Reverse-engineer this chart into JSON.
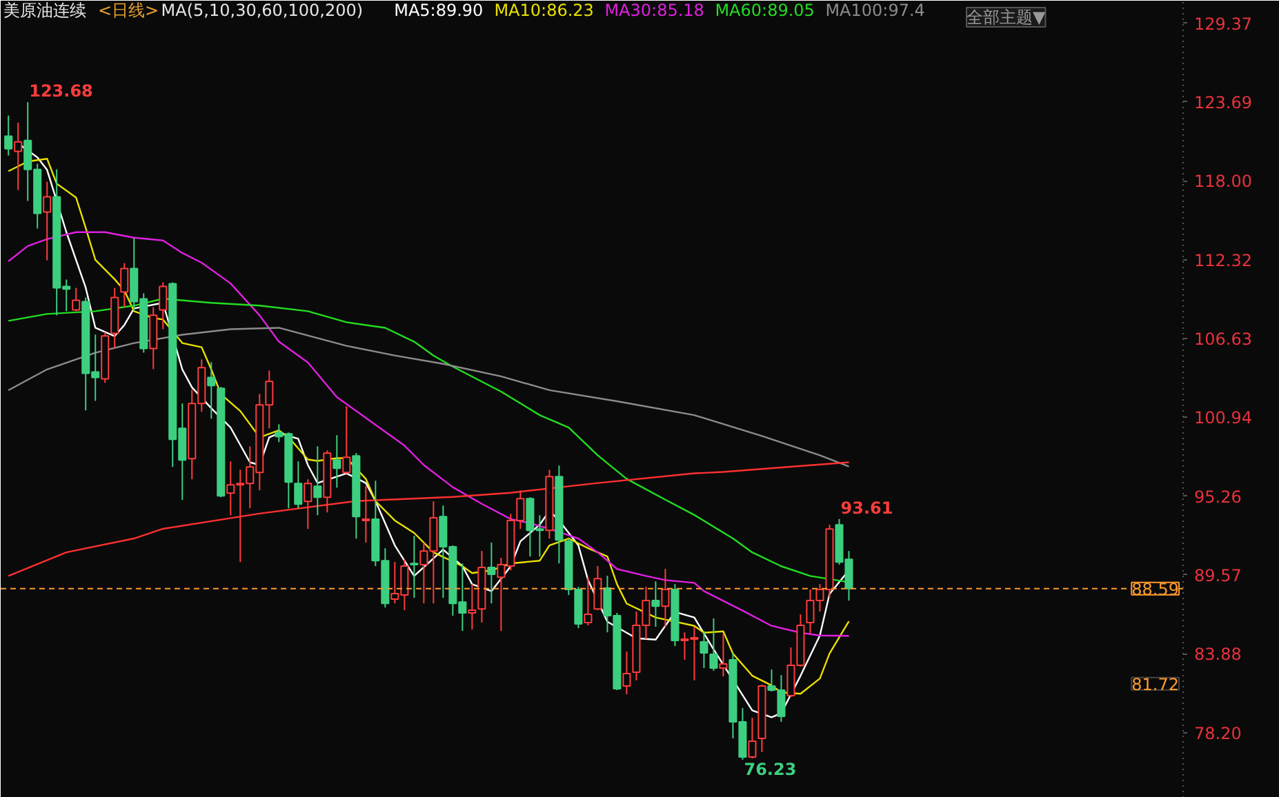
{
  "chart_data": {
    "type": "candlestick",
    "title": "美原油连续",
    "subtitle": "<日线>",
    "legend_title": "MA(5,10,30,60,100,200)",
    "legend": "top",
    "categories": [
      null,
      null,
      null,
      null,
      null,
      null,
      null,
      null,
      null,
      null,
      null,
      null,
      null,
      null,
      null,
      null,
      null,
      null,
      null,
      null,
      null,
      null,
      null,
      null,
      null,
      null,
      null,
      null,
      null,
      null,
      null,
      null,
      null,
      null,
      null,
      null,
      null,
      null,
      null,
      null,
      null,
      null,
      null,
      null,
      null,
      null,
      null,
      null,
      null,
      null,
      null,
      null,
      null,
      null,
      null,
      null,
      null,
      null,
      null,
      null,
      null,
      null,
      null,
      null,
      null,
      null,
      null,
      null,
      null,
      null,
      null,
      null,
      null,
      null,
      null,
      null,
      null,
      null,
      null,
      null,
      null,
      null,
      null,
      null,
      null,
      null,
      null,
      null
    ],
    "ohlc": [
      [
        121.22,
        122.71,
        119.83,
        120.32
      ],
      [
        120.13,
        122.21,
        117.34,
        120.82
      ],
      [
        120.92,
        123.68,
        116.55,
        118.83
      ],
      [
        118.83,
        119.23,
        114.56,
        115.65
      ],
      [
        115.75,
        117.94,
        112.27,
        116.85
      ],
      [
        116.85,
        118.83,
        108.3,
        110.28
      ],
      [
        110.38,
        110.88,
        108.6,
        110.19
      ],
      [
        108.69,
        110.28,
        108.6,
        109.39
      ],
      [
        109.29,
        109.59,
        101.44,
        104.12
      ],
      [
        104.22,
        106.91,
        102.13,
        103.82
      ],
      [
        103.72,
        107.1,
        103.43,
        106.81
      ],
      [
        107.0,
        110.28,
        105.91,
        109.59
      ],
      [
        109.99,
        112.07,
        108.89,
        111.68
      ],
      [
        111.68,
        113.86,
        108.6,
        109.29
      ],
      [
        109.49,
        109.89,
        105.61,
        105.91
      ],
      [
        105.91,
        108.89,
        104.42,
        108.3
      ],
      [
        108.69,
        110.68,
        107.3,
        110.38
      ],
      [
        110.58,
        110.68,
        97.36,
        99.35
      ],
      [
        100.15,
        101.94,
        94.98,
        97.86
      ],
      [
        97.96,
        102.93,
        96.47,
        101.94
      ],
      [
        101.94,
        105.12,
        101.34,
        104.52
      ],
      [
        103.82,
        104.92,
        100.84,
        103.23
      ],
      [
        103.03,
        103.13,
        95.18,
        95.28
      ],
      [
        95.47,
        97.76,
        93.88,
        96.07
      ],
      [
        96.07,
        97.16,
        90.5,
        96.17
      ],
      [
        96.17,
        98.85,
        94.38,
        97.36
      ],
      [
        96.97,
        102.63,
        95.67,
        101.84
      ],
      [
        101.84,
        104.32,
        100.15,
        103.53
      ],
      [
        99.85,
        100.44,
        99.15,
        99.55
      ],
      [
        99.75,
        99.85,
        94.38,
        96.27
      ],
      [
        96.17,
        97.76,
        94.38,
        94.68
      ],
      [
        94.88,
        96.47,
        92.89,
        96.17
      ],
      [
        95.97,
        98.85,
        93.88,
        95.18
      ],
      [
        95.18,
        98.56,
        94.08,
        98.36
      ],
      [
        97.86,
        99.65,
        95.87,
        97.26
      ],
      [
        96.97,
        101.74,
        96.87,
        98.06
      ],
      [
        98.16,
        98.36,
        92.19,
        93.78
      ],
      [
        93.49,
        95.97,
        91.9,
        93.59
      ],
      [
        93.59,
        96.37,
        90.21,
        90.6
      ],
      [
        90.6,
        91.5,
        87.22,
        87.52
      ],
      [
        87.82,
        90.5,
        87.52,
        88.22
      ],
      [
        88.12,
        90.7,
        87.03,
        90.21
      ],
      [
        90.4,
        92.39,
        87.92,
        90.31
      ],
      [
        90.31,
        91.9,
        87.52,
        91.3
      ],
      [
        91.3,
        94.88,
        87.52,
        93.69
      ],
      [
        93.78,
        94.58,
        87.92,
        91.6
      ],
      [
        91.6,
        91.7,
        86.63,
        87.52
      ],
      [
        87.62,
        90.4,
        85.53,
        86.83
      ],
      [
        86.83,
        88.91,
        85.63,
        87.03
      ],
      [
        87.12,
        91.3,
        86.13,
        90.11
      ],
      [
        90.11,
        91.9,
        87.52,
        89.61
      ],
      [
        89.41,
        90.8,
        85.53,
        90.31
      ],
      [
        90.21,
        93.98,
        89.91,
        93.49
      ],
      [
        93.49,
        95.67,
        92.89,
        95.08
      ],
      [
        95.08,
        95.18,
        90.9,
        92.79
      ],
      [
        92.89,
        93.88,
        90.9,
        92.79
      ],
      [
        92.79,
        97.16,
        92.19,
        96.67
      ],
      [
        96.67,
        97.46,
        90.4,
        92.09
      ],
      [
        92.0,
        92.19,
        88.12,
        88.52
      ],
      [
        88.52,
        88.71,
        85.73,
        86.03
      ],
      [
        86.13,
        89.41,
        85.93,
        86.73
      ],
      [
        87.12,
        90.21,
        87.03,
        89.31
      ],
      [
        88.62,
        89.51,
        85.43,
        86.63
      ],
      [
        86.63,
        86.83,
        81.26,
        81.36
      ],
      [
        81.56,
        84.04,
        80.96,
        82.45
      ],
      [
        82.55,
        86.93,
        81.96,
        85.93
      ],
      [
        85.93,
        88.72,
        84.94,
        87.72
      ],
      [
        87.72,
        89.11,
        85.83,
        87.32
      ],
      [
        87.32,
        90.01,
        85.83,
        88.52
      ],
      [
        88.52,
        88.91,
        84.44,
        84.84
      ],
      [
        84.84,
        85.43,
        83.45,
        84.94
      ],
      [
        84.94,
        85.83,
        81.96,
        85.04
      ],
      [
        84.74,
        85.53,
        82.85,
        83.94
      ],
      [
        83.84,
        86.43,
        82.65,
        82.85
      ],
      [
        82.85,
        85.34,
        82.25,
        83.15
      ],
      [
        83.45,
        83.95,
        77.78,
        78.97
      ],
      [
        78.97,
        79.97,
        76.23,
        76.43
      ],
      [
        76.43,
        79.27,
        76.33,
        77.58
      ],
      [
        77.78,
        81.66,
        76.79,
        81.56
      ],
      [
        81.56,
        82.75,
        81.16,
        81.26
      ],
      [
        81.26,
        82.35,
        78.97,
        79.37
      ],
      [
        80.86,
        84.34,
        80.76,
        83.05
      ],
      [
        83.05,
        86.73,
        82.95,
        85.93
      ],
      [
        86.13,
        88.52,
        85.34,
        87.72
      ],
      [
        87.72,
        88.91,
        86.93,
        88.52
      ],
      [
        88.52,
        93.19,
        87.92,
        92.89
      ],
      [
        93.19,
        93.61,
        90.31,
        90.5
      ],
      [
        90.7,
        91.3,
        87.72,
        88.59
      ]
    ],
    "series": [
      {
        "name": "MA5:89.90",
        "type": "line",
        "color": "#ffffff",
        "values": [
          null,
          120.7,
          null,
          119.7,
          118.8,
          null,
          114.3,
          null,
          110.3,
          107.4,
          null,
          106.8,
          107.6,
          108.8,
          null,
          null,
          109.2,
          null,
          104.4,
          103.1,
          null,
          101.6,
          null,
          100.2,
          null,
          97.7,
          97.5,
          99.5,
          99.8,
          null,
          99.4,
          97.5,
          96.2,
          null,
          null,
          96.9,
          null,
          96.2,
          94.9,
          null,
          91.7,
          null,
          89.5,
          null,
          null,
          91.4,
          null,
          90.2,
          88.9,
          null,
          88.4,
          null,
          90.2,
          92.0,
          null,
          93.2,
          94.2,
          93.5,
          null,
          91.7,
          89.2,
          null,
          86.2,
          null,
          null,
          85.0,
          null,
          84.9,
          null,
          86.9,
          null,
          86.5,
          null,
          84.2,
          null,
          null,
          null,
          79.8,
          null,
          79.3,
          79.6,
          null,
          82.3,
          null,
          85.2,
          88.2,
          null,
          89.9
        ]
      },
      {
        "name": "MA10:86.23",
        "type": "line",
        "color": "#e8e000",
        "values": [
          118.7,
          null,
          119.4,
          null,
          119.6,
          117.8,
          null,
          116.8,
          114.6,
          112.3,
          null,
          110.9,
          110.1,
          108.6,
          null,
          108.1,
          108.0,
          null,
          106.3,
          null,
          106.0,
          104.4,
          102.6,
          null,
          101.4,
          null,
          99.5,
          null,
          100.0,
          99.5,
          null,
          97.9,
          97.8,
          null,
          98.0,
          98.0,
          null,
          96.5,
          94.9,
          null,
          93.5,
          null,
          92.6,
          null,
          91.2,
          null,
          null,
          90.2,
          89.7,
          null,
          89.9,
          null,
          90.4,
          null,
          null,
          90.6,
          91.7,
          null,
          92.2,
          null,
          91.5,
          null,
          90.9,
          88.9,
          87.5,
          null,
          null,
          86.5,
          null,
          86.2,
          null,
          85.9,
          85.4,
          null,
          85.5,
          83.9,
          null,
          82.3,
          null,
          81.6,
          81.1,
          null,
          81.0,
          null,
          82.1,
          83.9,
          null,
          86.23
        ]
      },
      {
        "name": "MA30:85.18",
        "type": "line",
        "color": "#e020e0",
        "values": [
          112.2,
          null,
          113.3,
          null,
          113.8,
          null,
          null,
          114.3,
          null,
          null,
          114.3,
          null,
          null,
          113.9,
          null,
          null,
          113.7,
          null,
          112.8,
          null,
          112.1,
          null,
          null,
          110.6,
          null,
          null,
          108.3,
          null,
          106.4,
          null,
          null,
          104.9,
          null,
          null,
          102.4,
          null,
          101.4,
          null,
          100.4,
          null,
          null,
          98.9,
          null,
          97.5,
          null,
          null,
          95.9,
          null,
          null,
          94.7,
          null,
          null,
          93.6,
          null,
          93.3,
          null,
          92.9,
          null,
          null,
          92.2,
          null,
          91.2,
          null,
          90.0,
          null,
          null,
          89.5,
          null,
          89.2,
          null,
          null,
          89.0,
          88.4,
          null,
          null,
          null,
          87.0,
          null,
          null,
          85.9,
          null,
          null,
          85.4,
          null,
          85.2,
          null,
          null,
          85.18
        ]
      },
      {
        "name": "MA60:89.05",
        "type": "line",
        "color": "#22dd22",
        "values": [
          107.9,
          null,
          null,
          null,
          108.4,
          null,
          null,
          null,
          null,
          108.6,
          null,
          null,
          null,
          109.0,
          null,
          null,
          109.5,
          null,
          null,
          null,
          null,
          109.2,
          null,
          null,
          null,
          null,
          109.0,
          null,
          null,
          null,
          null,
          108.6,
          null,
          null,
          null,
          107.8,
          null,
          null,
          null,
          107.4,
          null,
          null,
          106.4,
          null,
          105.4,
          null,
          104.6,
          null,
          null,
          null,
          null,
          102.8,
          null,
          null,
          null,
          101.1,
          null,
          null,
          100.2,
          null,
          null,
          98.2,
          null,
          null,
          96.5,
          null,
          null,
          null,
          95.0,
          null,
          null,
          93.9,
          null,
          null,
          null,
          92.2,
          null,
          91.2,
          null,
          null,
          90.2,
          null,
          null,
          89.5,
          null,
          null,
          null,
          89.05
        ]
      },
      {
        "name": "MA100:97.4",
        "type": "line",
        "color": "#8c8c8c",
        "values": [
          102.9,
          null,
          null,
          null,
          104.4,
          null,
          null,
          null,
          null,
          105.6,
          null,
          null,
          null,
          106.3,
          null,
          null,
          null,
          null,
          106.9,
          null,
          null,
          null,
          null,
          107.3,
          null,
          null,
          null,
          null,
          107.4,
          null,
          null,
          null,
          null,
          null,
          null,
          106.1,
          null,
          null,
          null,
          null,
          105.4,
          null,
          null,
          null,
          null,
          104.8,
          null,
          null,
          null,
          null,
          null,
          103.9,
          null,
          null,
          null,
          null,
          102.9,
          null,
          null,
          null,
          null,
          null,
          null,
          102.1,
          null,
          null,
          null,
          null,
          null,
          null,
          null,
          101.1,
          null,
          null,
          null,
          null,
          null,
          null,
          99.6,
          null,
          null,
          null,
          null,
          null,
          98.2,
          null,
          null,
          97.4
        ]
      },
      {
        "type": "line",
        "color": "#ff3030",
        "values": [
          89.5,
          null,
          null,
          null,
          null,
          null,
          91.2,
          null,
          null,
          null,
          null,
          null,
          null,
          92.2,
          null,
          null,
          92.9,
          null,
          null,
          null,
          null,
          null,
          null,
          null,
          null,
          null,
          94.0,
          null,
          null,
          null,
          null,
          null,
          null,
          null,
          null,
          null,
          94.9,
          null,
          null,
          null,
          null,
          null,
          null,
          null,
          null,
          null,
          95.2,
          null,
          null,
          null,
          null,
          null,
          95.5,
          null,
          null,
          null,
          null,
          null,
          null,
          null,
          null,
          96.2,
          null,
          null,
          null,
          null,
          null,
          null,
          null,
          null,
          null,
          96.9,
          null,
          null,
          97.0,
          null,
          null,
          null,
          null,
          null,
          null,
          null,
          null,
          null,
          null,
          null,
          null,
          97.7
        ]
      }
    ],
    "ylim": [
      73.5,
      131.0
    ],
    "yticks": [
      129.37,
      123.69,
      {
        "value": 118.0,
        "label": "118.00"
      },
      112.32,
      106.63,
      100.94,
      95.26,
      89.57,
      83.88,
      {
        "value": 78.2,
        "label": "78.20"
      }
    ],
    "ref_lines": [
      {
        "axis": "y",
        "value": 88.59,
        "label": "88.59",
        "color": "#ff9a2e",
        "line_style": "dashed"
      }
    ],
    "annotations": [
      "全部主题▼",
      "123.68",
      "93.61",
      "76.23",
      "81.72"
    ]
  }
}
